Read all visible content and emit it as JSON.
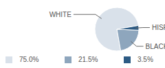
{
  "chart_data": {
    "type": "pie",
    "categories": [
      "WHITE",
      "BLACK",
      "HISPANIC"
    ],
    "values": [
      75,
      21.5,
      3.5
    ],
    "value_labels": [
      "75.0%",
      "21.5%",
      "3.5%"
    ],
    "colors": [
      "#d9e1ea",
      "#8ea6bd",
      "#2d5b84"
    ],
    "legend": "bottom"
  }
}
